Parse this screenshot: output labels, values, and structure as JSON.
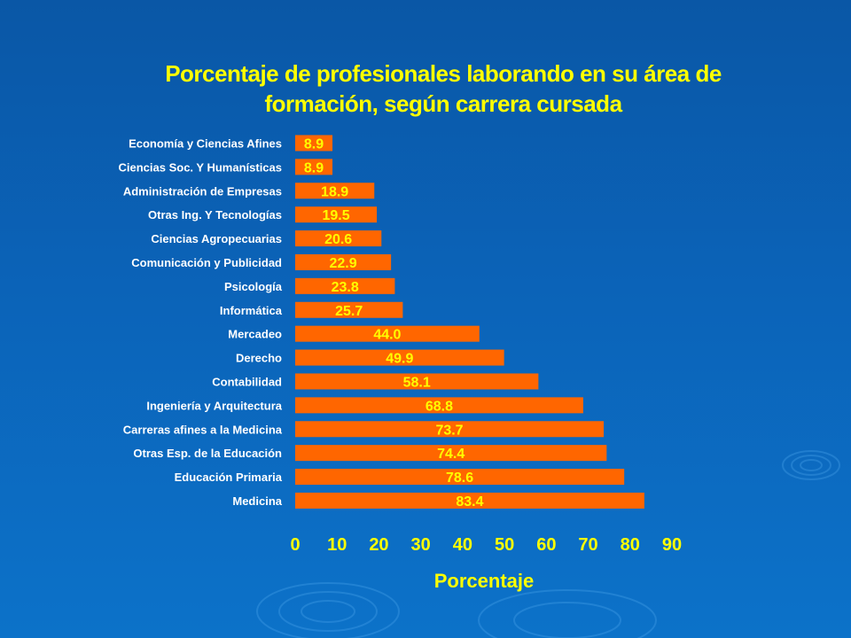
{
  "chart_data": {
    "type": "bar",
    "orientation": "horizontal",
    "title": [
      "Porcentaje de profesionales laborando en su área de",
      "formación, según carrera cursada"
    ],
    "xlabel": "Porcentaje",
    "ylabel": "",
    "xlim": [
      0,
      90
    ],
    "xticks": [
      "0",
      "10",
      "20",
      "30",
      "40",
      "50",
      "60",
      "70",
      "80",
      "90"
    ],
    "categories": [
      "Economía y Ciencias Afines",
      "Ciencias Soc. Y Humanísticas",
      "Administración de Empresas",
      "Otras Ing. Y Tecnologías",
      "Ciencias Agropecuarias",
      "Comunicación y Publicidad",
      "Psicología",
      "Informática",
      "Mercadeo",
      "Derecho",
      "Contabilidad",
      "Ingeniería y Arquitectura",
      "Carreras afines a la Medicina",
      "Otras Esp. de la Educación",
      "Educación Primaria",
      "Medicina"
    ],
    "values": [
      8.9,
      8.9,
      18.9,
      19.5,
      20.6,
      22.9,
      23.8,
      25.7,
      44.0,
      49.9,
      58.1,
      68.8,
      73.7,
      74.4,
      78.6,
      83.4
    ],
    "data_labels": [
      "8.9",
      "8.9",
      "18.9",
      "19.5",
      "20.6",
      "22.9",
      "23.8",
      "25.7",
      "44.0",
      "49.9",
      "58.1",
      "68.8",
      "73.7",
      "74.4",
      "78.6",
      "83.4"
    ],
    "grid": false,
    "legend": "none",
    "colors": {
      "bar": "#ff6600",
      "text": "#ffff00",
      "category_text": "#ffffff",
      "background": "#0b63b8"
    }
  }
}
